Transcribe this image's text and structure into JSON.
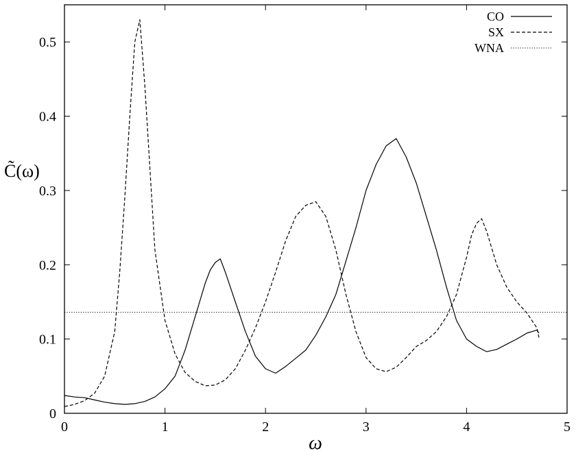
{
  "chart_data": {
    "type": "line",
    "title": "",
    "xlabel": "ω",
    "ylabel": "C̃(ω)",
    "xlim": [
      0,
      5
    ],
    "ylim": [
      0,
      0.55
    ],
    "xticks": [
      0,
      1,
      2,
      3,
      4,
      5
    ],
    "xtick_labels": [
      "0",
      "1",
      "2",
      "3",
      "4",
      "5"
    ],
    "yticks": [
      0,
      0.1,
      0.2,
      0.3,
      0.4,
      0.5
    ],
    "ytick_labels": [
      "0",
      "0.1",
      "0.2",
      "0.3",
      "0.4",
      "0.5"
    ],
    "grid": false,
    "legend_position": "top-right",
    "series": [
      {
        "name": "CO",
        "style": "solid",
        "x": [
          0.0,
          0.1,
          0.2,
          0.3,
          0.4,
          0.5,
          0.6,
          0.7,
          0.8,
          0.9,
          1.0,
          1.1,
          1.2,
          1.3,
          1.4,
          1.45,
          1.5,
          1.55,
          1.6,
          1.7,
          1.8,
          1.9,
          2.0,
          2.1,
          2.2,
          2.3,
          2.4,
          2.5,
          2.6,
          2.7,
          2.8,
          2.9,
          3.0,
          3.1,
          3.2,
          3.3,
          3.4,
          3.5,
          3.6,
          3.7,
          3.8,
          3.9,
          4.0,
          4.1,
          4.2,
          4.3,
          4.4,
          4.5,
          4.6,
          4.7,
          4.72
        ],
        "y": [
          0.024,
          0.022,
          0.021,
          0.018,
          0.015,
          0.013,
          0.012,
          0.013,
          0.016,
          0.022,
          0.033,
          0.05,
          0.085,
          0.13,
          0.175,
          0.193,
          0.203,
          0.208,
          0.19,
          0.15,
          0.11,
          0.077,
          0.06,
          0.054,
          0.063,
          0.074,
          0.085,
          0.105,
          0.13,
          0.16,
          0.205,
          0.25,
          0.3,
          0.335,
          0.36,
          0.37,
          0.345,
          0.31,
          0.265,
          0.22,
          0.17,
          0.125,
          0.1,
          0.09,
          0.083,
          0.086,
          0.093,
          0.1,
          0.108,
          0.112,
          0.108
        ]
      },
      {
        "name": "SX",
        "style": "dashed",
        "x": [
          0.0,
          0.1,
          0.2,
          0.3,
          0.4,
          0.5,
          0.55,
          0.6,
          0.65,
          0.7,
          0.75,
          0.8,
          0.85,
          0.9,
          1.0,
          1.1,
          1.2,
          1.3,
          1.4,
          1.5,
          1.6,
          1.7,
          1.8,
          1.9,
          2.0,
          2.1,
          2.2,
          2.3,
          2.4,
          2.5,
          2.6,
          2.7,
          2.8,
          2.9,
          3.0,
          3.1,
          3.2,
          3.3,
          3.4,
          3.5,
          3.6,
          3.7,
          3.8,
          3.9,
          4.0,
          4.05,
          4.1,
          4.15,
          4.2,
          4.3,
          4.4,
          4.5,
          4.6,
          4.7,
          4.72
        ],
        "y": [
          0.009,
          0.012,
          0.017,
          0.027,
          0.05,
          0.11,
          0.19,
          0.29,
          0.4,
          0.5,
          0.53,
          0.44,
          0.33,
          0.22,
          0.125,
          0.08,
          0.055,
          0.043,
          0.037,
          0.038,
          0.045,
          0.06,
          0.085,
          0.115,
          0.15,
          0.19,
          0.232,
          0.265,
          0.28,
          0.285,
          0.265,
          0.22,
          0.16,
          0.11,
          0.075,
          0.06,
          0.056,
          0.062,
          0.075,
          0.09,
          0.098,
          0.11,
          0.13,
          0.16,
          0.21,
          0.24,
          0.256,
          0.262,
          0.245,
          0.2,
          0.17,
          0.15,
          0.135,
          0.115,
          0.102
        ]
      },
      {
        "name": "WNA",
        "style": "dotted",
        "x": [
          0.0,
          5.0
        ],
        "y": [
          0.136,
          0.136
        ]
      }
    ]
  }
}
